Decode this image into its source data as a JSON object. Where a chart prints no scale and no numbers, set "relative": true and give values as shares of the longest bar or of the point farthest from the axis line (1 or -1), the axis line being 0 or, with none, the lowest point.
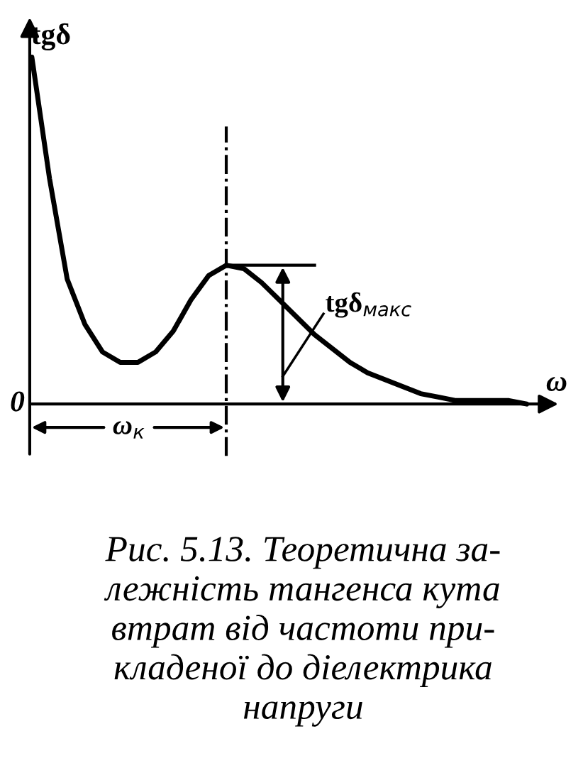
{
  "chart_data": {
    "type": "line",
    "relative": true,
    "xlabel": "ω",
    "ylabel": "tgδ",
    "categories": [
      null,
      null,
      null,
      null,
      null,
      null,
      null,
      null,
      null,
      null,
      null,
      null,
      null,
      null,
      null,
      null,
      null,
      null,
      null,
      null,
      null,
      null,
      null,
      null,
      null,
      null,
      null,
      null,
      null
    ],
    "series": [
      {
        "color": "#000000",
        "values": [
          1.0,
          0.65,
          0.36,
          0.23,
          0.15,
          0.12,
          0.12,
          0.15,
          0.21,
          0.3,
          0.37,
          0.4,
          0.39,
          0.35,
          0.3,
          0.25,
          0.2,
          0.16,
          0.12,
          0.09,
          0.07,
          0.05,
          0.03,
          0.02,
          0.01,
          0.01,
          0.01,
          0.01,
          0.0
        ]
      }
    ],
    "annotations": [
      "0",
      "tgδ$_{макс}$",
      "ω$_{к}$",
      "Рис. 5.13. Теоретична за-\nлежність тангенса кута\nвтрат від частоти при-\nкладеної до діелектрика\nнапруги"
    ],
    "line_style": "solid"
  }
}
